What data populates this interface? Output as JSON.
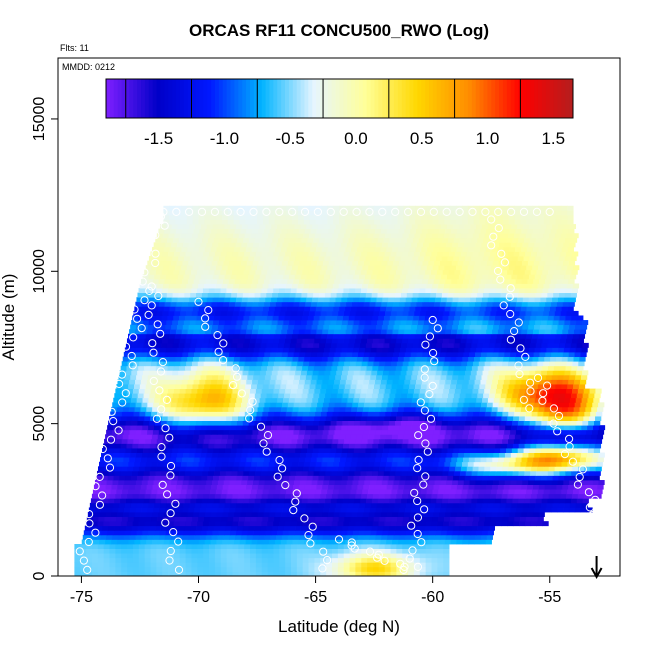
{
  "chart_data": {
    "type": "heatmap",
    "title": "ORCAS RF11 CONCU500_RWO (Log)",
    "annotations": [
      "Flts: 11",
      "MMDD: 0212"
    ],
    "xlabel": "Latitude (deg N)",
    "ylabel": "Altitude (m)",
    "xlim": [
      -76,
      -52
    ],
    "ylim": [
      0,
      17000
    ],
    "x_ticks": [
      -75,
      -70,
      -65,
      -60,
      -55
    ],
    "y_ticks": [
      0,
      5000,
      10000,
      15000
    ],
    "colorbar": {
      "range": [
        -1.9,
        1.65
      ],
      "ticks": [
        -1.5,
        -1.0,
        -0.5,
        0.0,
        0.5,
        1.0,
        1.5
      ],
      "tick_labels": [
        "-1.5",
        "-1.0",
        "-0.5",
        "0.0",
        "0.5",
        "1.0",
        "1.5"
      ],
      "colors": [
        "#7f1fff",
        "#0000c8",
        "#0018ff",
        "#00b4ff",
        "#e6f5ff",
        "#ffff99",
        "#ffd700",
        "#ff8c00",
        "#ff0000",
        "#b41e1e"
      ]
    },
    "hotspots": [
      {
        "lat": -69.8,
        "alt": 5600,
        "value": 0.8
      },
      {
        "lat": -55.0,
        "alt": 6100,
        "value": 1.3
      },
      {
        "lat": -54.5,
        "alt": 3900,
        "value": 1.2
      },
      {
        "lat": -62.5,
        "alt": 300,
        "value": 0.5
      },
      {
        "lat": -71.5,
        "alt": 4200,
        "value": -1.6
      },
      {
        "lat": -61.5,
        "alt": 5000,
        "value": -1.6
      }
    ],
    "arrow_marker_lat": -53.0,
    "point_color": "#ffffff",
    "grid": false
  }
}
